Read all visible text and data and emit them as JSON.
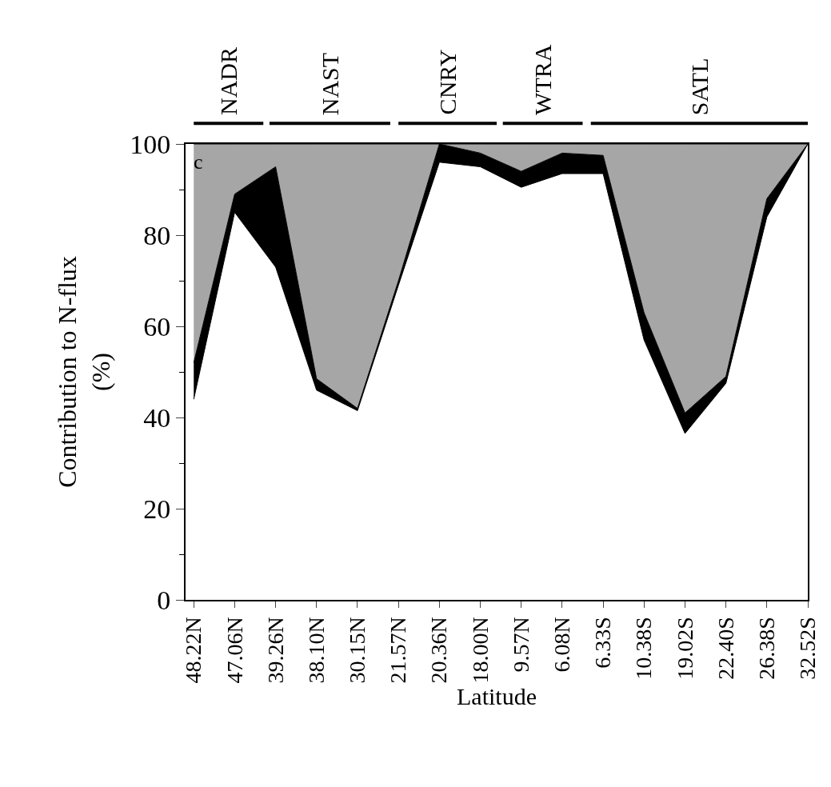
{
  "chart_data": {
    "type": "area",
    "stacked": true,
    "xlabel": "Latitude",
    "ylabel": "Contribution to N-flux\n(%)",
    "categories": [
      "48.22N",
      "47.06N",
      "39.26N",
      "38.10N",
      "30.15N",
      "21.57N",
      "20.36N",
      "18.00N",
      "9.57N",
      "6.08N",
      "6.33S",
      "10.38S",
      "19.02S",
      "22.40S",
      "26.38S",
      "32.52S"
    ],
    "series": [
      {
        "color": "#ffffff",
        "values": [
          44,
          85,
          73,
          46,
          41.5,
          69,
          96,
          95,
          90.5,
          93.5,
          93.5,
          57,
          36.5,
          47.5,
          84,
          100
        ]
      },
      {
        "color": "#000000",
        "values": [
          8,
          4,
          22,
          2.5,
          0.5,
          1,
          4,
          3,
          3.5,
          4.5,
          4,
          6,
          4.5,
          1.5,
          4,
          0
        ]
      },
      {
        "color": "#a6a6a6",
        "values": [
          48,
          11,
          5,
          51.5,
          58,
          30,
          0,
          2,
          6,
          2,
          2.5,
          37,
          59,
          51,
          12,
          0
        ]
      }
    ],
    "ylim": [
      0,
      100
    ],
    "yticks": [
      0,
      20,
      40,
      60,
      80,
      100
    ],
    "legend": false,
    "annotations": [
      "c",
      "NADR",
      "NAST",
      "CNRY",
      "WTRA",
      "SATL"
    ]
  }
}
